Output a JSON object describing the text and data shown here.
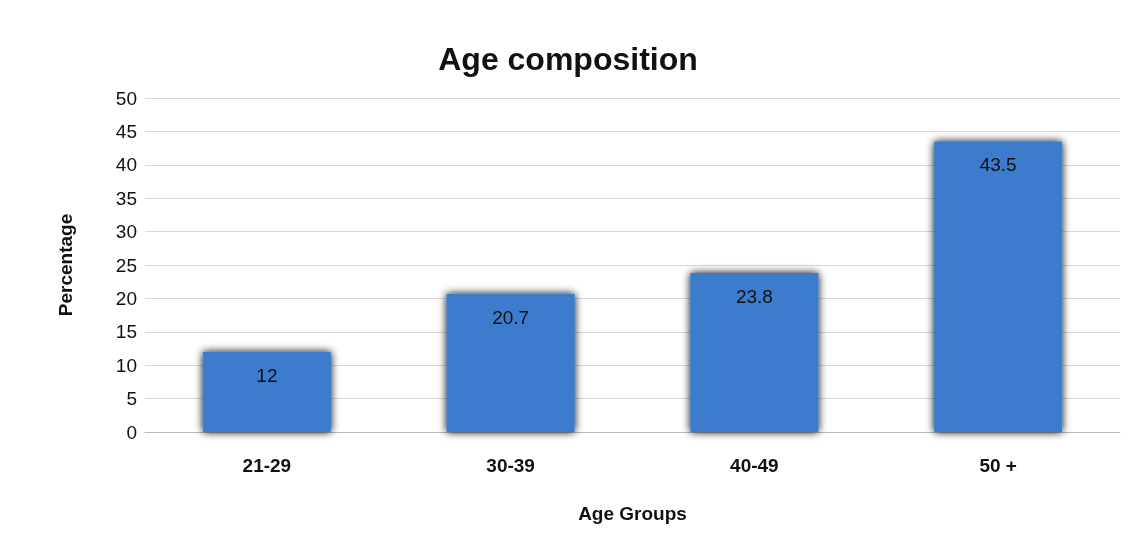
{
  "chart_data": {
    "type": "bar",
    "title": "Age composition",
    "xlabel": "Age Groups",
    "ylabel": "Percentage",
    "categories": [
      "21-29",
      "30-39",
      "40-49",
      "50 +"
    ],
    "values": [
      12,
      20.7,
      23.8,
      43.5
    ],
    "color": "#3d7bcc",
    "ylim": [
      0,
      50
    ],
    "yticks": [
      0,
      5,
      10,
      15,
      20,
      25,
      30,
      35,
      40,
      45,
      50
    ],
    "grid": "y",
    "data_labels": true
  }
}
